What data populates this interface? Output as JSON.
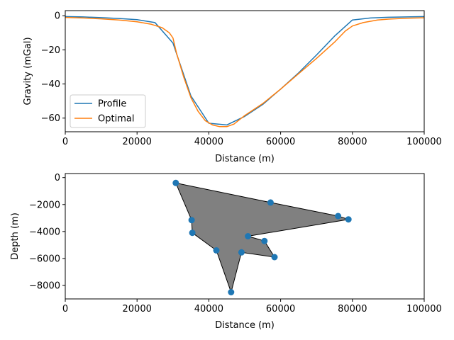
{
  "chart_data": [
    {
      "type": "line",
      "xlabel": "Distance (m)",
      "ylabel": "Gravity (mGal)",
      "xlim": [
        0,
        100000
      ],
      "ylim": [
        -68,
        3
      ],
      "xticks": [
        0,
        20000,
        40000,
        60000,
        80000,
        100000
      ],
      "yticks": [
        0,
        -20,
        -40,
        -60
      ],
      "legend_position": "lower-left",
      "series": [
        {
          "name": "Profile",
          "color": "#1f77b4",
          "x": [
            0,
            5000,
            10000,
            15000,
            20000,
            25000,
            30000,
            35000,
            40000,
            45000,
            50000,
            55000,
            60000,
            65000,
            70000,
            75000,
            80000,
            85000,
            90000,
            95000,
            100000
          ],
          "y": [
            -0.5,
            -0.7,
            -1.1,
            -1.6,
            -2.3,
            -4.0,
            -16.0,
            -47.0,
            -63.0,
            -64.0,
            -59.0,
            -52.0,
            -43.0,
            -33.5,
            -23.0,
            -12.0,
            -2.5,
            -1.3,
            -0.9,
            -0.7,
            -0.5
          ]
        },
        {
          "name": "Optimal",
          "color": "#ff7f0e",
          "x": [
            0,
            5000,
            10000,
            15000,
            20000,
            24000,
            27000,
            29000,
            30000,
            31000,
            33000,
            35000,
            37000,
            39000,
            41000,
            43000,
            45000,
            47000,
            50000,
            55000,
            60000,
            65000,
            70000,
            75000,
            78000,
            80000,
            83000,
            87000,
            90000,
            95000,
            100000
          ],
          "y": [
            -1.0,
            -1.3,
            -1.8,
            -2.5,
            -3.5,
            -5.0,
            -7.0,
            -10.0,
            -13.0,
            -22.0,
            -36.0,
            -48.0,
            -56.0,
            -61.5,
            -64.0,
            -65.0,
            -65.0,
            -63.5,
            -58.5,
            -51.5,
            -43.0,
            -34.0,
            -25.0,
            -15.5,
            -9.0,
            -6.0,
            -4.0,
            -2.5,
            -2.0,
            -1.5,
            -1.2
          ]
        }
      ]
    },
    {
      "type": "scatter",
      "xlabel": "Distance (m)",
      "ylabel": "Depth (m)",
      "xlim": [
        0,
        100000
      ],
      "ylim": [
        -9000,
        300
      ],
      "xticks": [
        0,
        20000,
        40000,
        60000,
        80000,
        100000
      ],
      "yticks": [
        0,
        -2000,
        -4000,
        -6000,
        -8000
      ],
      "fill_color": "#808080",
      "point_color": "#1f77b4",
      "polygon": [
        [
          30800,
          -400
        ],
        [
          57200,
          -1850
        ],
        [
          76000,
          -2850
        ],
        [
          78900,
          -3100
        ],
        [
          50900,
          -4350
        ],
        [
          55500,
          -4700
        ],
        [
          58300,
          -5900
        ],
        [
          49100,
          -5550
        ],
        [
          46200,
          -8500
        ],
        [
          42100,
          -5400
        ],
        [
          35400,
          -4100
        ],
        [
          35200,
          -3150
        ]
      ]
    }
  ]
}
